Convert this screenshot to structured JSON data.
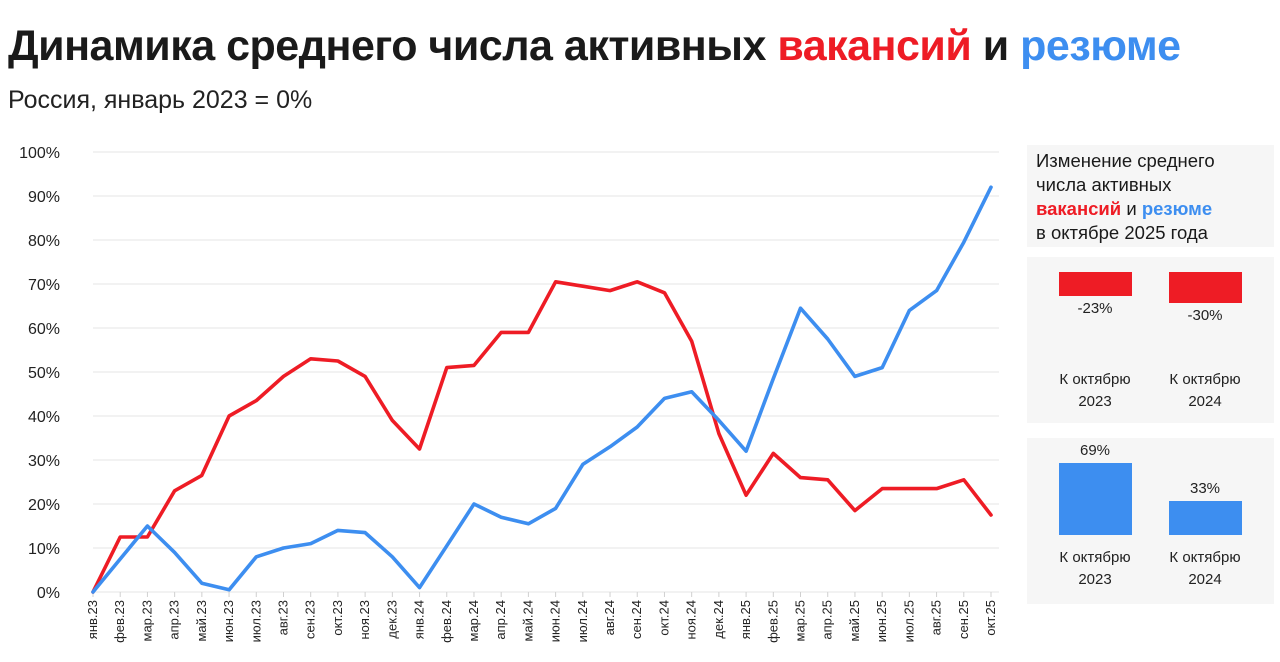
{
  "header": {
    "title_part1": "Динамика среднего числа активных ",
    "title_red": "вакансий",
    "title_mid": " и ",
    "title_blue": "резюме",
    "subtitle": "Россия, январь 2023 = 0%"
  },
  "colors": {
    "vacancies": "#ee1c25",
    "resumes": "#3d8ef0",
    "grid": "#e6e6e6"
  },
  "chart_data": {
    "type": "line",
    "x": [
      "янв.23",
      "фев.23",
      "мар.23",
      "апр.23",
      "май.23",
      "июн.23",
      "июл.23",
      "авг.23",
      "сен.23",
      "окт.23",
      "ноя.23",
      "дек.23",
      "янв.24",
      "фев.24",
      "мар.24",
      "апр.24",
      "май.24",
      "июн.24",
      "июл.24",
      "авг.24",
      "сен.24",
      "окт.24",
      "ноя.24",
      "дек.24",
      "янв.25",
      "фев.25",
      "мар.25",
      "апр.25",
      "май.25",
      "июн.25",
      "июл.25",
      "авг.25",
      "сен.25",
      "окт.25"
    ],
    "ylim": [
      0,
      100
    ],
    "yticks": [
      "0%",
      "10%",
      "20%",
      "30%",
      "40%",
      "50%",
      "60%",
      "70%",
      "80%",
      "90%",
      "100%"
    ],
    "grid": true,
    "series": [
      {
        "key": "vacancies",
        "color": "#ee1c25",
        "values": [
          0,
          12.5,
          12.5,
          23,
          26.5,
          40,
          43.5,
          49,
          53,
          52.5,
          49,
          39,
          32.5,
          51,
          51.5,
          59,
          59,
          70.5,
          69.5,
          68.5,
          70.5,
          68,
          57,
          36,
          22,
          31.5,
          26,
          25.5,
          18.5,
          23.5,
          23.5,
          23.5,
          25.5,
          17.5
        ]
      },
      {
        "key": "resumes",
        "color": "#3d8ef0",
        "values": [
          0,
          7.5,
          15,
          9,
          2,
          0.5,
          8,
          10,
          11,
          14,
          13.5,
          8,
          1,
          10.5,
          20,
          17,
          15.5,
          19,
          29,
          33,
          37.5,
          44,
          45.5,
          39,
          32,
          48.5,
          64.5,
          57.5,
          49,
          51,
          64,
          68.5,
          79.5,
          92
        ]
      }
    ]
  },
  "side": {
    "head_line1": "Изменение среднего",
    "head_line2": "числа активных",
    "head_red": "вакансий",
    "head_mid": " и ",
    "head_blue": "резюме",
    "head_line4": "в октябре 2025 года",
    "vacancy_changes": [
      {
        "value": -23,
        "label": "-23%",
        "caption1": "К октябрю",
        "caption2": "2023"
      },
      {
        "value": -30,
        "label": "-30%",
        "caption1": "К октябрю",
        "caption2": "2024"
      }
    ],
    "resume_changes": [
      {
        "value": 69,
        "label": "69%",
        "caption1": "К октябрю",
        "caption2": "2023"
      },
      {
        "value": 33,
        "label": "33%",
        "caption1": "К октябрю",
        "caption2": "2024"
      }
    ]
  }
}
